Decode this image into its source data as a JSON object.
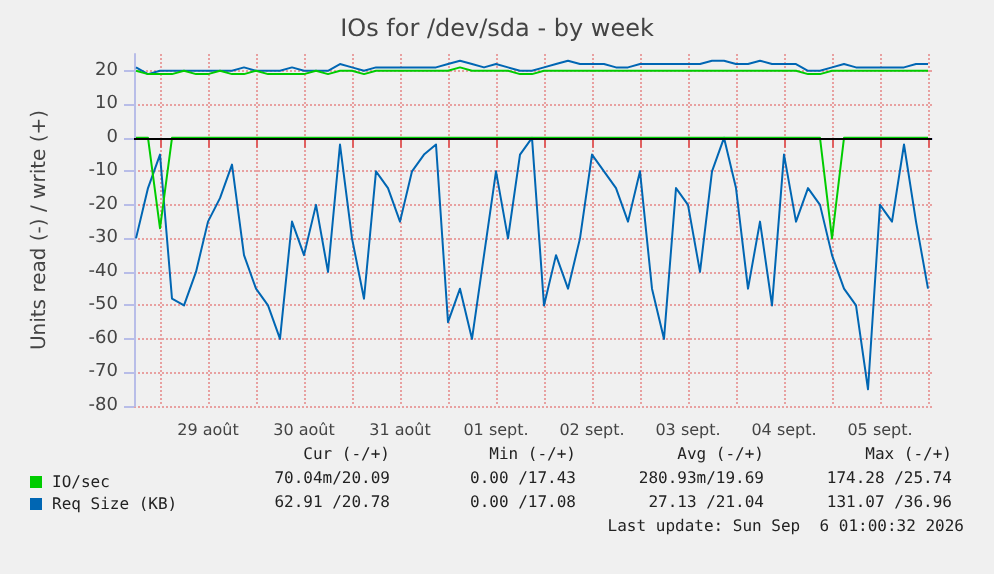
{
  "chart_data": {
    "type": "line",
    "title": "IOs for /dev/sda - by week",
    "ylabel": "Units read (-) / write (+)",
    "x": [
      "2026-08-28T18:00",
      "2026-08-28T21:00",
      "2026-08-29T00:00",
      "2026-08-29T03:00",
      "2026-08-29T06:00",
      "2026-08-29T09:00",
      "2026-08-29T12:00",
      "2026-08-29T15:00",
      "2026-08-29T18:00",
      "2026-08-29T21:00",
      "2026-08-30T00:00",
      "2026-08-30T03:00",
      "2026-08-30T06:00",
      "2026-08-30T09:00",
      "2026-08-30T12:00",
      "2026-08-30T15:00",
      "2026-08-30T18:00",
      "2026-08-30T21:00",
      "2026-08-31T00:00",
      "2026-08-31T03:00",
      "2026-08-31T06:00",
      "2026-08-31T09:00",
      "2026-08-31T12:00",
      "2026-08-31T15:00",
      "2026-08-31T18:00",
      "2026-08-31T21:00",
      "2026-09-01T00:00",
      "2026-09-01T03:00",
      "2026-09-01T06:00",
      "2026-09-01T09:00",
      "2026-09-01T12:00",
      "2026-09-01T15:00",
      "2026-09-01T18:00",
      "2026-09-01T21:00",
      "2026-09-02T00:00",
      "2026-09-02T03:00",
      "2026-09-02T06:00",
      "2026-09-02T09:00",
      "2026-09-02T12:00",
      "2026-09-02T15:00",
      "2026-09-02T18:00",
      "2026-09-02T21:00",
      "2026-09-03T00:00",
      "2026-09-03T03:00",
      "2026-09-03T06:00",
      "2026-09-03T09:00",
      "2026-09-03T12:00",
      "2026-09-03T15:00",
      "2026-09-03T18:00",
      "2026-09-03T21:00",
      "2026-09-04T00:00",
      "2026-09-04T03:00",
      "2026-09-04T06:00",
      "2026-09-04T09:00",
      "2026-09-04T12:00",
      "2026-09-04T15:00",
      "2026-09-04T18:00",
      "2026-09-04T21:00",
      "2026-09-05T00:00",
      "2026-09-05T03:00",
      "2026-09-05T06:00",
      "2026-09-05T09:00",
      "2026-09-05T12:00",
      "2026-09-05T15:00",
      "2026-09-05T18:00",
      "2026-09-05T21:00",
      "2026-09-06T00:00"
    ],
    "series": [
      {
        "name": "Req Size (KB)",
        "color": "#0066b3",
        "values": [
          -30,
          -15,
          -5,
          -48,
          -50,
          -40,
          -25,
          -18,
          -8,
          -35,
          -45,
          -50,
          -60,
          -25,
          -35,
          -20,
          -40,
          -2,
          -30,
          -48,
          -10,
          -15,
          -25,
          -10,
          -5,
          -2,
          -55,
          -45,
          -60,
          -35,
          -10,
          -30,
          -5,
          0,
          -50,
          -35,
          -45,
          -30,
          -5,
          -10,
          -15,
          -25,
          -10,
          -45,
          -60,
          -15,
          -20,
          -40,
          -10,
          0,
          -15,
          -45,
          -25,
          -50,
          -5,
          -25,
          -15,
          -20,
          -35,
          -45,
          -50,
          -75,
          -20,
          -25,
          -2,
          -25,
          -45
        ]
      },
      {
        "color": "#0066b3",
        "values": [
          21,
          19,
          20,
          20,
          20,
          20,
          20,
          20,
          20,
          21,
          20,
          20,
          20,
          21,
          20,
          20,
          20,
          22,
          21,
          20,
          21,
          21,
          21,
          21,
          21,
          21,
          22,
          23,
          22,
          21,
          22,
          21,
          20,
          20,
          21,
          22,
          23,
          22,
          22,
          22,
          21,
          21,
          22,
          22,
          22,
          22,
          22,
          22,
          23,
          23,
          22,
          22,
          23,
          22,
          22,
          22,
          20,
          20,
          21,
          22,
          21,
          21,
          21,
          21,
          21,
          22,
          22
        ]
      },
      {
        "name": "IO/sec",
        "color": "#00cc00",
        "values": [
          0,
          0,
          -27,
          0,
          0,
          0,
          0,
          0,
          0,
          0,
          0,
          0,
          0,
          0,
          0,
          0,
          0,
          0,
          0,
          0,
          0,
          0,
          0,
          0,
          0,
          0,
          0,
          0,
          0,
          0,
          0,
          0,
          0,
          0,
          0,
          0,
          0,
          0,
          0,
          0,
          0,
          0,
          0,
          0,
          0,
          0,
          0,
          0,
          0,
          0,
          0,
          0,
          0,
          0,
          0,
          0,
          0,
          0,
          -30,
          0,
          0,
          0,
          0,
          0,
          0,
          0,
          0
        ]
      },
      {
        "color": "#00cc00",
        "values": [
          20,
          19,
          19,
          19,
          20,
          19,
          19,
          20,
          19,
          19,
          20,
          19,
          19,
          19,
          19,
          20,
          19,
          20,
          20,
          19,
          20,
          20,
          20,
          20,
          20,
          20,
          20,
          21,
          20,
          20,
          20,
          20,
          19,
          19,
          20,
          20,
          20,
          20,
          20,
          20,
          20,
          20,
          20,
          20,
          20,
          20,
          20,
          20,
          20,
          20,
          20,
          20,
          20,
          20,
          20,
          20,
          19,
          19,
          20,
          20,
          20,
          20,
          20,
          20,
          20,
          20,
          20
        ]
      }
    ],
    "xlim": [
      "2026-08-28T17:30",
      "2026-09-06T01:00"
    ],
    "xticks": [
      {
        "value": "2026-08-29T00:00",
        "label": null
      },
      {
        "value": "2026-08-29T12:00",
        "label": "29 août"
      },
      {
        "value": "2026-08-30T00:00",
        "label": null
      },
      {
        "value": "2026-08-30T12:00",
        "label": "30 août"
      },
      {
        "value": "2026-08-31T00:00",
        "label": null
      },
      {
        "value": "2026-08-31T12:00",
        "label": "31 août"
      },
      {
        "value": "2026-09-01T00:00",
        "label": null
      },
      {
        "value": "2026-09-01T12:00",
        "label": "01 sept."
      },
      {
        "value": "2026-09-02T00:00",
        "label": null
      },
      {
        "value": "2026-09-02T12:00",
        "label": "02 sept."
      },
      {
        "value": "2026-09-03T00:00",
        "label": null
      },
      {
        "value": "2026-09-03T12:00",
        "label": "03 sept."
      },
      {
        "value": "2026-09-04T00:00",
        "label": null
      },
      {
        "value": "2026-09-04T12:00",
        "label": "04 sept."
      },
      {
        "value": "2026-09-05T00:00",
        "label": null
      },
      {
        "value": "2026-09-05T12:00",
        "label": "05 sept."
      },
      {
        "value": "2026-09-06T00:00",
        "label": null
      }
    ],
    "ylim": [
      -80,
      25
    ],
    "yticks": [
      -80,
      -70,
      -60,
      -50,
      -40,
      -30,
      -20,
      -10,
      0,
      10,
      20
    ],
    "ref_lines": [
      {
        "axis": "y",
        "value": 0,
        "color": "#000000"
      }
    ],
    "grid": true,
    "legend": "bottom",
    "marker": "none",
    "line_style": "solid",
    "annotations": [
      "Cur (-/+)",
      "Min (-/+)",
      "Avg (-/+)",
      "Max (-/+)",
      "70.04m/20.09",
      "0.00 /17.43",
      "280.93m/19.69",
      "174.28 /25.74",
      "62.91 /20.78",
      "0.00 /17.08",
      "27.13 /21.04",
      "131.07 /36.96",
      "Last update: Sun Sep  6 01:00:32 2026"
    ]
  }
}
